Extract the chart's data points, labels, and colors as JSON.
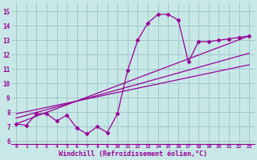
{
  "background_color": "#c8e8e8",
  "grid_color": "#a0c8c8",
  "line_color": "#990099",
  "marker_color": "#990099",
  "xlabel": "Windchill (Refroidissement éolien,°C)",
  "xlabel_fontsize": 6.0,
  "xtick_labels": [
    "0",
    "1",
    "2",
    "3",
    "4",
    "5",
    "6",
    "7",
    "8",
    "9",
    "10",
    "11",
    "12",
    "13",
    "14",
    "15",
    "16",
    "17",
    "18",
    "19",
    "20",
    "21",
    "22",
    "23"
  ],
  "ytick_labels": [
    "6",
    "7",
    "8",
    "9",
    "10",
    "11",
    "12",
    "13",
    "14",
    "15"
  ],
  "xlim": [
    -0.5,
    23.5
  ],
  "ylim": [
    5.8,
    15.6
  ],
  "main_line": {
    "x": [
      0,
      1,
      2,
      3,
      4,
      5,
      6,
      7,
      8,
      9,
      10,
      11,
      12,
      13,
      14,
      15,
      16,
      17,
      18,
      19,
      20,
      21,
      22,
      23
    ],
    "y": [
      7.2,
      7.1,
      7.9,
      7.9,
      7.4,
      7.8,
      6.9,
      6.5,
      7.0,
      6.6,
      7.9,
      10.9,
      13.0,
      14.2,
      14.8,
      14.8,
      14.4,
      11.5,
      12.9,
      12.9,
      13.0,
      13.1,
      13.2,
      13.3
    ]
  },
  "reg_lines": [
    {
      "x": [
        0,
        23
      ],
      "y": [
        7.2,
        13.3
      ]
    },
    {
      "x": [
        0,
        23
      ],
      "y": [
        7.6,
        12.1
      ]
    },
    {
      "x": [
        0,
        23
      ],
      "y": [
        7.9,
        11.3
      ]
    }
  ],
  "marker": "D",
  "markersize": 2.5,
  "linewidth": 0.9
}
